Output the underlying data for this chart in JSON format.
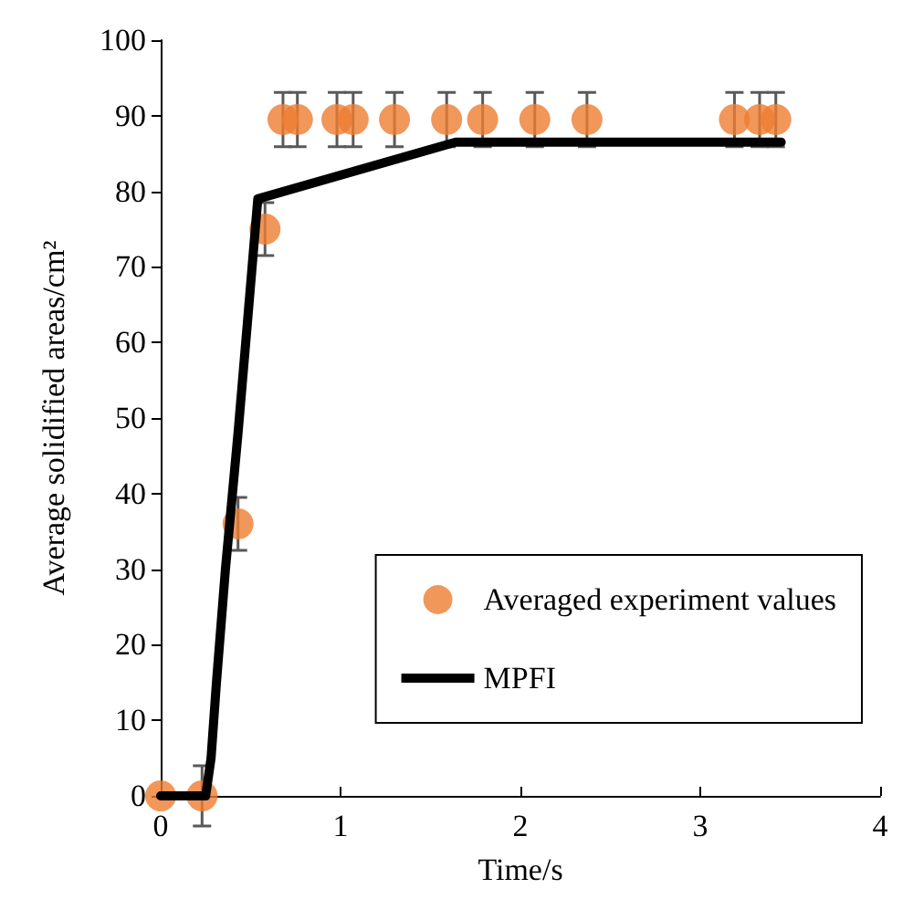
{
  "chart_data": {
    "type": "scatter",
    "xlabel": "Time/s",
    "ylabel": "Average solidified areas/cm²",
    "xlim": [
      0,
      4
    ],
    "xticks": [
      0,
      1,
      2,
      3,
      4
    ],
    "ylim": [
      0,
      100
    ],
    "yticks": [
      0,
      10,
      20,
      30,
      40,
      50,
      60,
      70,
      80,
      90,
      100
    ],
    "grid": false,
    "legend": "bottom right",
    "series": [
      {
        "name": "Averaged experiment values",
        "marker": "circle",
        "color": "#ed7d31",
        "x": [
          0,
          0.23,
          0.43,
          0.58,
          0.68,
          0.76,
          0.98,
          1.07,
          1.3,
          1.59,
          1.79,
          2.08,
          2.37,
          3.19,
          3.33,
          3.42
        ],
        "values": [
          0,
          0,
          36,
          75,
          89.5,
          89.5,
          89.5,
          89.5,
          89.5,
          89.5,
          89.5,
          89.5,
          89.5,
          89.5,
          89.5,
          89.5
        ],
        "errors": [
          null,
          4,
          3.5,
          3.5,
          3.6,
          3.6,
          3.6,
          3.6,
          3.6,
          3.6,
          3.6,
          3.6,
          3.6,
          3.6,
          3.6,
          3.6
        ]
      },
      {
        "name": "MPFI",
        "type": "line",
        "marker": "none",
        "line_style": "solid",
        "color": "#000000",
        "x": [
          0,
          0.25,
          0.28,
          0.31,
          0.36,
          0.43,
          0.48,
          0.54,
          1.64,
          3.45
        ],
        "values": [
          0,
          0,
          5,
          15,
          30,
          48,
          62,
          79,
          86.5,
          86.5
        ]
      }
    ]
  }
}
